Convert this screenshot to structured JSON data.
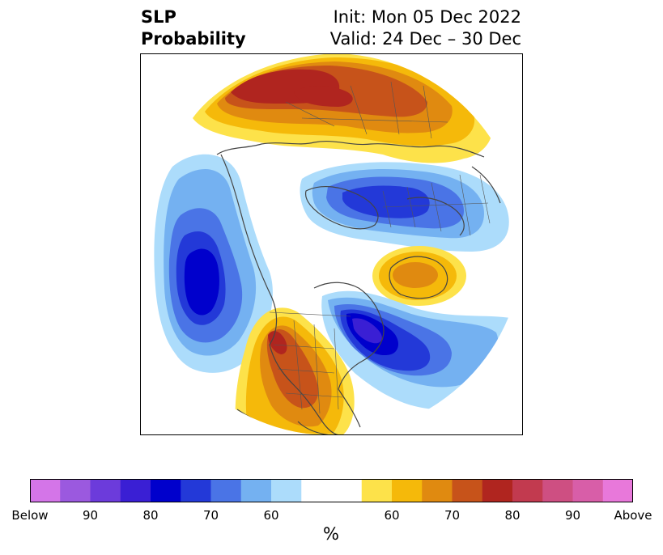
{
  "header": {
    "title_line1": "SLP",
    "title_line2": "Probability",
    "init": "Init: Mon 05 Dec 2022",
    "valid": "Valid: 24 Dec – 30 Dec"
  },
  "colorbar": {
    "colors": [
      "#d475e8",
      "#9b59df",
      "#6c3bdb",
      "#3a1fd4",
      "#0000cc",
      "#2339d8",
      "#4a74e6",
      "#74b1f1",
      "#acdcfb",
      "#ffffff",
      "#ffffff",
      "#fde24a",
      "#f5b90a",
      "#e08a10",
      "#c7531a",
      "#b0251f",
      "#c23a4f",
      "#ce4f82",
      "#d85ea8",
      "#e878da"
    ],
    "tick_labels": [
      "Below",
      "90",
      "80",
      "70",
      "60",
      "60",
      "70",
      "80",
      "90",
      "Above"
    ],
    "unit": "%"
  },
  "map_colors": {
    "land_line": "#444444",
    "border_line": "#555555"
  }
}
